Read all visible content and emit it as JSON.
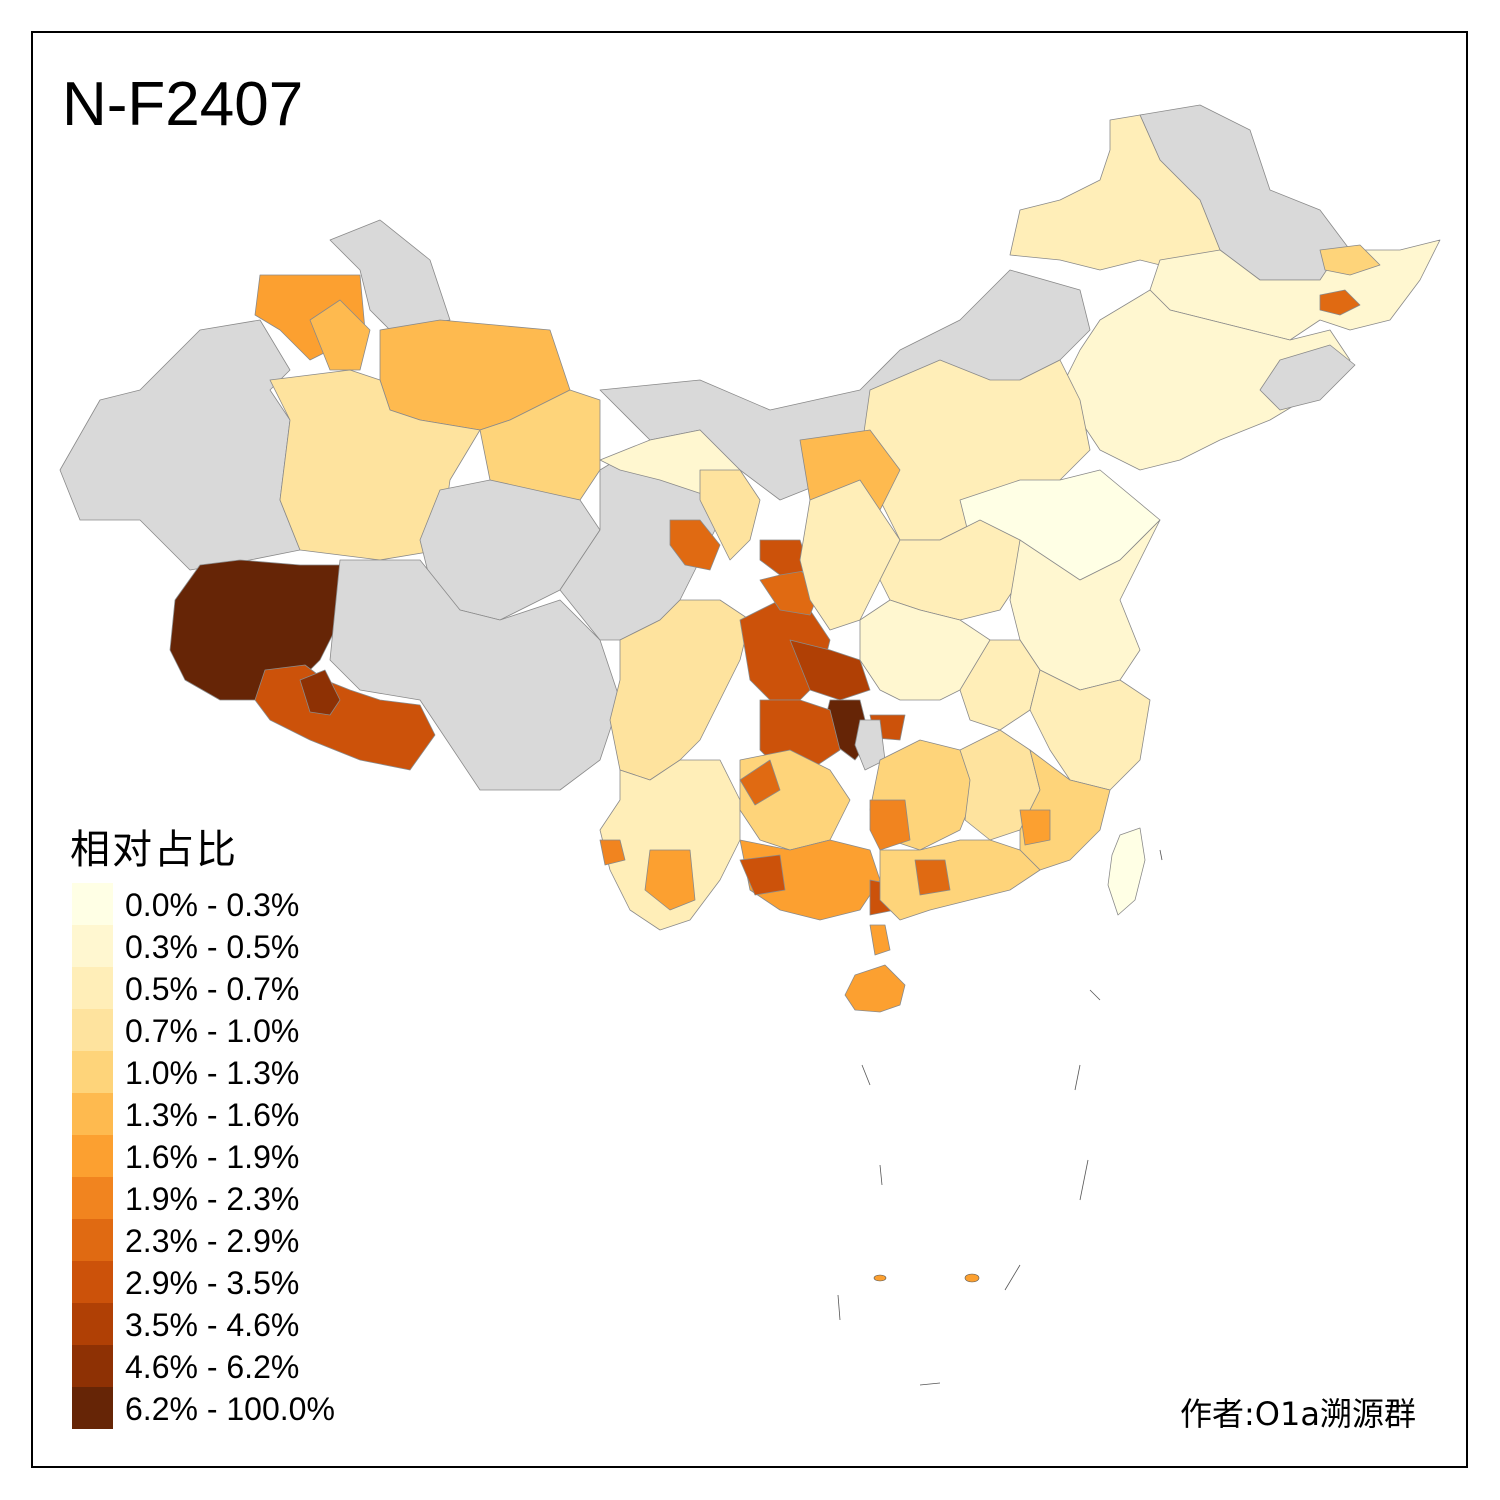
{
  "title": "N-F2407",
  "legend": {
    "title": "相对占比",
    "items": [
      {
        "label": "0.0% - 0.3%",
        "color": "#ffffe5"
      },
      {
        "label": "0.3% - 0.5%",
        "color": "#fff7d0"
      },
      {
        "label": "0.5% - 0.7%",
        "color": "#ffeeb8"
      },
      {
        "label": "0.7% - 1.0%",
        "color": "#fee39e"
      },
      {
        "label": "1.0% - 1.3%",
        "color": "#fed47a"
      },
      {
        "label": "1.3% - 1.6%",
        "color": "#feba4f"
      },
      {
        "label": "1.6% - 1.9%",
        "color": "#fca030"
      },
      {
        "label": "1.9% - 2.3%",
        "color": "#f1841f"
      },
      {
        "label": "2.3% - 2.9%",
        "color": "#e06a12"
      },
      {
        "label": "2.9% - 3.5%",
        "color": "#cc520a"
      },
      {
        "label": "3.5% - 4.6%",
        "color": "#b04005"
      },
      {
        "label": "4.6% - 6.2%",
        "color": "#8e3104"
      },
      {
        "label": "6.2% - 100.0%",
        "color": "#662506"
      }
    ]
  },
  "author": "作者:O1a溯源群",
  "no_data_color": "#d9d9d9"
}
